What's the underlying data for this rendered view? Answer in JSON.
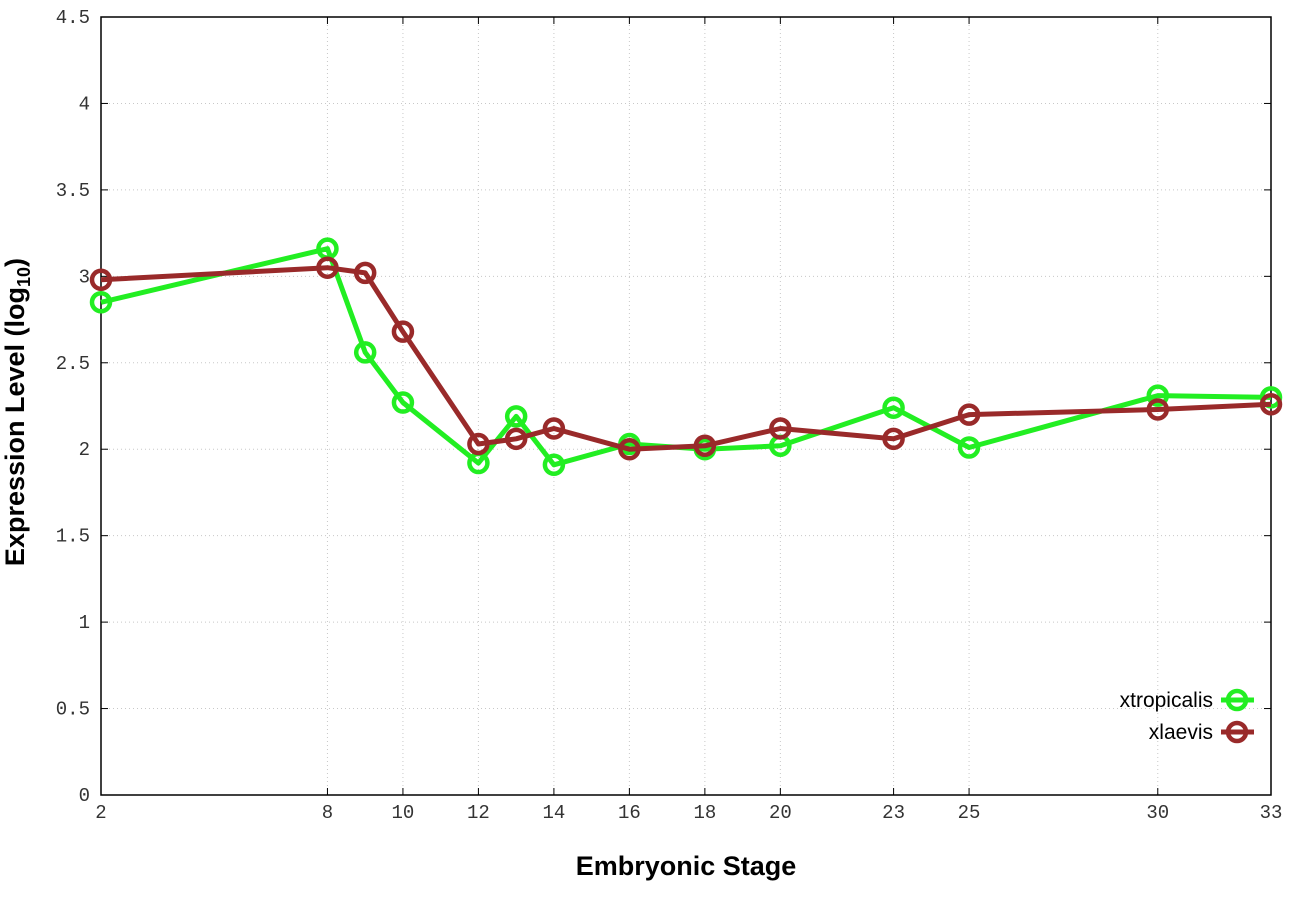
{
  "chart_data": {
    "type": "line",
    "xlabel": "Embryonic Stage",
    "ylabel_main": "Expression Level (log",
    "ylabel_sub": "10",
    "ylabel_end": ")",
    "x_ticks": [
      "2",
      "8",
      "10",
      "12",
      "14",
      "16",
      "18",
      "20",
      "23",
      "25",
      "30",
      "33"
    ],
    "y_ticks": [
      "0",
      "0.5",
      "1",
      "1.5",
      "2",
      "2.5",
      "3",
      "3.5",
      "4",
      "4.5"
    ],
    "ylim": [
      0,
      4.5
    ],
    "grid": true,
    "legend_position": "bottom-right",
    "series": [
      {
        "name": "xtropicalis",
        "color": "#22ee22",
        "x": [
          2,
          8,
          9,
          10,
          12,
          13,
          14,
          16,
          18,
          20,
          23,
          25,
          30,
          33
        ],
        "values": [
          2.85,
          3.16,
          2.56,
          2.27,
          1.92,
          2.19,
          1.91,
          2.03,
          2.0,
          2.02,
          2.24,
          2.01,
          2.31,
          2.3
        ]
      },
      {
        "name": "xlaevis",
        "color": "#992a2a",
        "x": [
          2,
          8,
          9,
          10,
          12,
          13,
          14,
          16,
          18,
          20,
          23,
          25,
          30,
          33
        ],
        "values": [
          2.98,
          3.05,
          3.02,
          2.68,
          2.03,
          2.06,
          2.12,
          2.0,
          2.02,
          2.12,
          2.06,
          2.2,
          2.23,
          2.26
        ]
      }
    ]
  }
}
